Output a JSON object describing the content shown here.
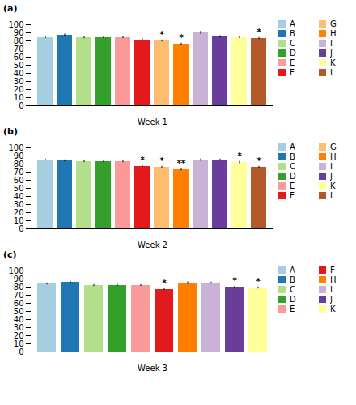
{
  "chart_data": [
    {
      "type": "bar",
      "title": "(a)",
      "xlabel": "Week 1",
      "categories": [
        "A",
        "B",
        "C",
        "D",
        "E",
        "F",
        "G",
        "H",
        "I",
        "J",
        "K",
        "L"
      ],
      "values": [
        84,
        87,
        84,
        84,
        84,
        81,
        80,
        76,
        90,
        85,
        84,
        83
      ],
      "errors": [
        1.2,
        1.5,
        1.2,
        1.2,
        1.2,
        1.5,
        1.2,
        1.2,
        2.0,
        1.5,
        1.2,
        1.2
      ],
      "annotations": [
        {
          "category": "G",
          "text": "*"
        },
        {
          "category": "H",
          "text": "*"
        },
        {
          "category": "L",
          "text": "*"
        }
      ],
      "ylim": [
        0,
        100
      ],
      "yticks": [
        0,
        10,
        20,
        30,
        40,
        50,
        60,
        70,
        80,
        90,
        100
      ],
      "grid": false,
      "legend": "right",
      "tick_labels": "y"
    },
    {
      "type": "bar",
      "title": "(b)",
      "xlabel": "Week 2",
      "categories": [
        "A",
        "B",
        "C",
        "D",
        "E",
        "F",
        "G",
        "H",
        "I",
        "J",
        "K",
        "L"
      ],
      "values": [
        85,
        84,
        83,
        83,
        83,
        77,
        76,
        73,
        85,
        85,
        82,
        76
      ],
      "errors": [
        1.2,
        1.2,
        1.2,
        1.2,
        1.2,
        1.2,
        1.2,
        1.2,
        1.5,
        1.2,
        1.5,
        1.2
      ],
      "annotations": [
        {
          "category": "F",
          "text": "*"
        },
        {
          "category": "G",
          "text": "*"
        },
        {
          "category": "H",
          "text": "**"
        },
        {
          "category": "K",
          "text": "*"
        },
        {
          "category": "L",
          "text": "*"
        }
      ],
      "ylim": [
        0,
        100
      ],
      "yticks": [
        0,
        10,
        20,
        30,
        40,
        50,
        60,
        70,
        80,
        90,
        100
      ],
      "grid": false,
      "legend": "right",
      "tick_labels": "y"
    },
    {
      "type": "bar",
      "title": "(c)",
      "xlabel": "Week 3",
      "categories": [
        "A",
        "B",
        "C",
        "D",
        "E",
        "F",
        "H",
        "I",
        "J",
        "K"
      ],
      "values": [
        84,
        86,
        82,
        82,
        82,
        77,
        85,
        85,
        80,
        79
      ],
      "errors": [
        1.2,
        1.2,
        1.2,
        1.2,
        1.2,
        1.2,
        1.5,
        1.2,
        1.2,
        1.2
      ],
      "annotations": [
        {
          "category": "F",
          "text": "*"
        },
        {
          "category": "J",
          "text": "*"
        },
        {
          "category": "K",
          "text": "*"
        }
      ],
      "ylim": [
        0,
        100
      ],
      "yticks": [
        0,
        10,
        20,
        30,
        40,
        50,
        60,
        70,
        80,
        90,
        100
      ],
      "grid": false,
      "legend": "right",
      "tick_labels": "y"
    }
  ]
}
